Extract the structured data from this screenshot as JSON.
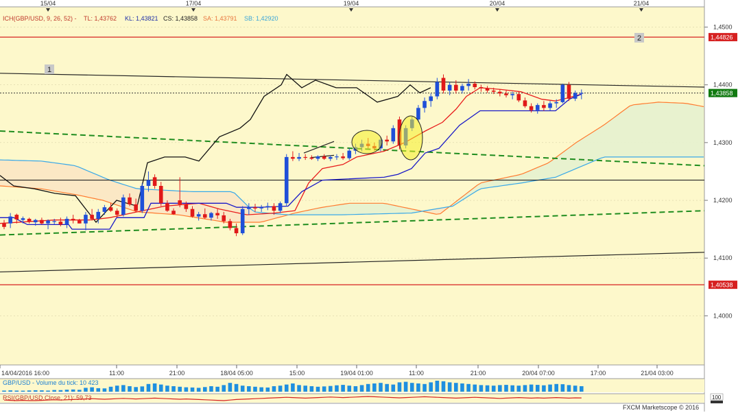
{
  "chart_data": {
    "type": "candlestick",
    "instrument": "GBP/USD",
    "indicator_header": {
      "ich_label": "ICH(GBP/USD, 9, 26, 52) -",
      "tl": "TL: 1,43762",
      "kl": "KL: 1,43821",
      "cs": "CS: 1,43858",
      "sa": "SA: 1,43791",
      "sb": "SB: 1,42920"
    },
    "top_date_labels": [
      "15/04",
      "17/04",
      "19/04",
      "20/04",
      "21/04"
    ],
    "bottom_time_labels": [
      "14/04/2016 16:00",
      "11:00",
      "21:00",
      "18/04 05:00",
      "15:00",
      "19/04 01:00",
      "11:00",
      "21:00",
      "20/04 07:00",
      "17:00",
      "21/04 03:00"
    ],
    "y_ticks": [
      "1,4500",
      "1,4400",
      "1,4300",
      "1,4200",
      "1,4100",
      "1,4000"
    ],
    "ylim": [
      1.3915,
      1.4535
    ],
    "price_tags": {
      "resistance": "1,44826",
      "current": "1,43858",
      "support": "1,40538"
    },
    "annotations": [
      "1",
      "2"
    ],
    "candles": [
      [
        1.416,
        1.4166,
        1.415,
        1.4154
      ],
      [
        1.416,
        1.4178,
        1.4152,
        1.4172
      ],
      [
        1.4175,
        1.4177,
        1.416,
        1.4167
      ],
      [
        1.4166,
        1.4172,
        1.416,
        1.4169
      ],
      [
        1.4168,
        1.417,
        1.416,
        1.4163
      ],
      [
        1.4162,
        1.4168,
        1.4156,
        1.4166
      ],
      [
        1.4166,
        1.417,
        1.4158,
        1.416
      ],
      [
        1.416,
        1.4167,
        1.415,
        1.4165
      ],
      [
        1.4164,
        1.4168,
        1.4158,
        1.4164
      ],
      [
        1.4163,
        1.417,
        1.4155,
        1.4158
      ],
      [
        1.4158,
        1.4172,
        1.4152,
        1.4168
      ],
      [
        1.4168,
        1.4175,
        1.416,
        1.4165
      ],
      [
        1.4165,
        1.4168,
        1.416,
        1.416
      ],
      [
        1.416,
        1.418,
        1.4148,
        1.4175
      ],
      [
        1.4175,
        1.4185,
        1.4165,
        1.4168
      ],
      [
        1.4168,
        1.4185,
        1.416,
        1.418
      ],
      [
        1.418,
        1.4192,
        1.4175,
        1.4188
      ],
      [
        1.4188,
        1.4195,
        1.418,
        1.4182
      ],
      [
        1.4182,
        1.4186,
        1.417,
        1.4175
      ],
      [
        1.4175,
        1.421,
        1.4172,
        1.4205
      ],
      [
        1.4205,
        1.4212,
        1.419,
        1.4193
      ],
      [
        1.4193,
        1.4203,
        1.418,
        1.4182
      ],
      [
        1.4182,
        1.423,
        1.4178,
        1.4225
      ],
      [
        1.4225,
        1.425,
        1.4215,
        1.4235
      ],
      [
        1.424,
        1.4245,
        1.422,
        1.4225
      ],
      [
        1.4225,
        1.4232,
        1.419,
        1.4195
      ],
      [
        1.4195,
        1.42,
        1.418,
        1.4182
      ],
      [
        1.4182,
        1.4186,
        1.4175,
        1.4176
      ],
      [
        1.42,
        1.424,
        1.4188,
        1.4193
      ],
      [
        1.4193,
        1.4198,
        1.418,
        1.4185
      ],
      [
        1.4185,
        1.419,
        1.417,
        1.4172
      ],
      [
        1.4172,
        1.418,
        1.4165,
        1.4176
      ],
      [
        1.4176,
        1.4186,
        1.4168,
        1.417
      ],
      [
        1.417,
        1.418,
        1.4165,
        1.4178
      ],
      [
        1.4178,
        1.4185,
        1.4168,
        1.4174
      ],
      [
        1.4174,
        1.418,
        1.416,
        1.4164
      ],
      [
        1.4164,
        1.4168,
        1.4148,
        1.4152
      ],
      [
        1.4152,
        1.416,
        1.4138,
        1.4143
      ],
      [
        1.4143,
        1.419,
        1.414,
        1.4185
      ],
      [
        1.4185,
        1.4195,
        1.4175,
        1.4188
      ],
      [
        1.4188,
        1.4194,
        1.418,
        1.4186
      ],
      [
        1.4186,
        1.4192,
        1.418,
        1.4188
      ],
      [
        1.4188,
        1.4196,
        1.4183,
        1.419
      ],
      [
        1.419,
        1.4195,
        1.4175,
        1.4182
      ],
      [
        1.4182,
        1.4198,
        1.4178,
        1.4195
      ],
      [
        1.4195,
        1.428,
        1.419,
        1.4275
      ],
      [
        1.4275,
        1.4285,
        1.4268,
        1.4272
      ],
      [
        1.4272,
        1.4282,
        1.4268,
        1.4275
      ],
      [
        1.4275,
        1.428,
        1.427,
        1.4274
      ],
      [
        1.4274,
        1.4278,
        1.427,
        1.4272
      ],
      [
        1.4272,
        1.4278,
        1.4268,
        1.4276
      ],
      [
        1.4276,
        1.428,
        1.427,
        1.4272
      ],
      [
        1.4272,
        1.4278,
        1.4268,
        1.4275
      ],
      [
        1.4275,
        1.428,
        1.427,
        1.4276
      ],
      [
        1.4276,
        1.4282,
        1.427,
        1.4273
      ],
      [
        1.4273,
        1.429,
        1.427,
        1.4286
      ],
      [
        1.4286,
        1.4298,
        1.428,
        1.4292
      ],
      [
        1.4292,
        1.4305,
        1.4285,
        1.4298
      ],
      [
        1.4298,
        1.4308,
        1.429,
        1.4294
      ],
      [
        1.4294,
        1.43,
        1.4286,
        1.429
      ],
      [
        1.429,
        1.431,
        1.4285,
        1.4305
      ],
      [
        1.4305,
        1.4312,
        1.4295,
        1.4302
      ],
      [
        1.4302,
        1.433,
        1.4298,
        1.4325
      ],
      [
        1.434,
        1.4345,
        1.4288,
        1.4295
      ],
      [
        1.4295,
        1.433,
        1.429,
        1.4325
      ],
      [
        1.4325,
        1.4345,
        1.432,
        1.434
      ],
      [
        1.434,
        1.4365,
        1.4335,
        1.436
      ],
      [
        1.436,
        1.4378,
        1.4352,
        1.4372
      ],
      [
        1.4372,
        1.4385,
        1.4362,
        1.438
      ],
      [
        1.438,
        1.4412,
        1.4375,
        1.4405
      ],
      [
        1.4412,
        1.4418,
        1.4385,
        1.439
      ],
      [
        1.439,
        1.4405,
        1.4382,
        1.44
      ],
      [
        1.44,
        1.4408,
        1.4385,
        1.439
      ],
      [
        1.439,
        1.4402,
        1.4385,
        1.4398
      ],
      [
        1.4398,
        1.441,
        1.439,
        1.4402
      ],
      [
        1.4402,
        1.4406,
        1.4392,
        1.4396
      ],
      [
        1.4396,
        1.44,
        1.4388,
        1.4394
      ],
      [
        1.4394,
        1.4398,
        1.4386,
        1.439
      ],
      [
        1.439,
        1.4395,
        1.4384,
        1.4388
      ],
      [
        1.4388,
        1.4392,
        1.438,
        1.4385
      ],
      [
        1.4385,
        1.439,
        1.4378,
        1.4382
      ],
      [
        1.4382,
        1.4388,
        1.4375,
        1.4384
      ],
      [
        1.4384,
        1.4388,
        1.437,
        1.4373
      ],
      [
        1.4373,
        1.4378,
        1.436,
        1.4363
      ],
      [
        1.4363,
        1.4368,
        1.4352,
        1.4356
      ],
      [
        1.4356,
        1.4368,
        1.435,
        1.4365
      ],
      [
        1.4365,
        1.4372,
        1.4355,
        1.436
      ],
      [
        1.436,
        1.4372,
        1.4355,
        1.4368
      ],
      [
        1.4368,
        1.4375,
        1.436,
        1.437
      ],
      [
        1.437,
        1.4402,
        1.4368,
        1.44
      ],
      [
        1.44,
        1.4405,
        1.4372,
        1.4376
      ],
      [
        1.4376,
        1.439,
        1.4372,
        1.4386
      ],
      [
        1.4386,
        1.4392,
        1.4375,
        1.4386
      ]
    ],
    "volume": [
      0.1,
      0.12,
      0.1,
      0.09,
      0.11,
      0.13,
      0.12,
      0.1,
      0.15,
      0.14,
      0.18,
      0.2,
      0.17,
      0.35,
      0.4,
      0.32,
      0.3,
      0.45,
      0.55,
      0.6,
      0.5,
      0.42,
      0.48,
      0.7,
      0.75,
      0.65,
      0.55,
      0.5,
      0.45,
      0.4,
      0.38,
      0.35,
      0.42,
      0.5,
      0.45,
      0.6,
      0.8,
      0.7,
      0.55,
      0.5,
      0.45,
      0.4,
      0.38,
      0.5,
      0.55,
      0.65,
      0.75,
      0.6,
      0.55,
      0.5,
      0.45,
      0.48,
      0.52,
      0.58,
      0.62,
      0.55,
      0.5,
      0.6,
      0.7,
      0.75,
      0.8,
      0.7,
      0.65,
      0.85,
      0.9,
      0.8,
      0.75,
      0.7,
      0.85,
      1.0,
      0.95,
      0.85,
      0.8,
      0.75,
      0.7,
      0.65,
      0.6,
      0.58,
      0.55,
      0.6,
      0.62,
      0.58,
      0.55,
      0.6,
      0.65,
      0.62,
      0.58,
      0.65,
      0.7,
      0.68,
      0.6,
      0.55,
      0.5
    ],
    "volume_label": "GBP/USD - Volume du tick: 10 423",
    "rsi_label": "RSI(GBP/USD.Close, 21): 59,73",
    "rsi_scale_label": "100",
    "rsi": [
      52,
      51,
      50,
      51,
      50,
      50,
      51,
      52,
      53,
      52,
      53,
      54,
      55,
      56,
      57,
      56,
      55,
      56,
      57,
      58,
      57,
      56,
      57,
      58,
      59,
      58,
      57,
      56,
      55,
      56,
      55,
      54,
      53,
      52,
      51,
      50,
      52,
      54,
      55,
      56,
      57,
      58,
      59,
      60,
      61,
      62,
      61,
      60,
      59,
      60,
      61,
      62,
      63,
      62,
      61,
      62,
      63,
      64,
      65,
      64,
      63,
      62,
      61,
      60,
      61,
      62,
      63,
      64,
      63,
      62,
      61,
      60,
      59,
      60,
      61,
      62,
      61,
      60,
      59,
      58,
      59,
      60,
      61,
      60,
      59,
      60,
      59,
      60,
      61,
      60,
      59,
      60,
      59.73
    ],
    "footer": "FXCM Marketscope © 2016"
  }
}
